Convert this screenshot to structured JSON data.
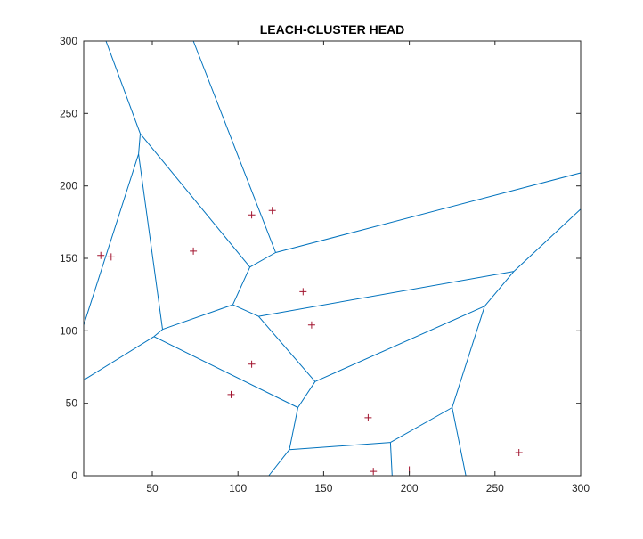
{
  "chart_data": {
    "type": "scatter",
    "title": "LEACH-CLUSTER HEAD",
    "xlabel": "",
    "ylabel": "",
    "xlim": [
      10,
      300
    ],
    "ylim": [
      0,
      300
    ],
    "xticks": [
      50,
      100,
      150,
      200,
      250,
      300
    ],
    "yticks": [
      0,
      50,
      100,
      150,
      200,
      250,
      300
    ],
    "grid": false,
    "legend": "none",
    "marker": "+",
    "marker_color": "#A2142F",
    "edge_color": "#0072BD",
    "points": [
      {
        "x": 20,
        "y": 152
      },
      {
        "x": 26,
        "y": 151
      },
      {
        "x": 74,
        "y": 155
      },
      {
        "x": 108,
        "y": 180
      },
      {
        "x": 120,
        "y": 183
      },
      {
        "x": 138,
        "y": 127
      },
      {
        "x": 143,
        "y": 104
      },
      {
        "x": 108,
        "y": 77
      },
      {
        "x": 96,
        "y": 56
      },
      {
        "x": 176,
        "y": 40
      },
      {
        "x": 179,
        "y": 3
      },
      {
        "x": 200,
        "y": 4
      },
      {
        "x": 264,
        "y": 16
      }
    ],
    "voronoi_edges": [
      [
        [
          23,
          300
        ],
        [
          43,
          236
        ]
      ],
      [
        [
          43,
          236
        ],
        [
          42,
          222
        ]
      ],
      [
        [
          42,
          222
        ],
        [
          10,
          104
        ]
      ],
      [
        [
          42,
          222
        ],
        [
          56,
          101
        ]
      ],
      [
        [
          43,
          236
        ],
        [
          107,
          144
        ]
      ],
      [
        [
          74,
          300
        ],
        [
          122,
          154
        ]
      ],
      [
        [
          107,
          144
        ],
        [
          122,
          154
        ]
      ],
      [
        [
          107,
          144
        ],
        [
          97,
          118
        ]
      ],
      [
        [
          97,
          118
        ],
        [
          56,
          101
        ]
      ],
      [
        [
          56,
          101
        ],
        [
          51,
          96
        ]
      ],
      [
        [
          51,
          96
        ],
        [
          10,
          66
        ]
      ],
      [
        [
          51,
          96
        ],
        [
          135,
          47
        ]
      ],
      [
        [
          97,
          118
        ],
        [
          112,
          110
        ]
      ],
      [
        [
          112,
          110
        ],
        [
          145,
          65
        ]
      ],
      [
        [
          145,
          65
        ],
        [
          135,
          47
        ]
      ],
      [
        [
          135,
          47
        ],
        [
          130,
          18
        ]
      ],
      [
        [
          130,
          18
        ],
        [
          118,
          0
        ]
      ],
      [
        [
          130,
          18
        ],
        [
          189,
          23
        ]
      ],
      [
        [
          189,
          23
        ],
        [
          190,
          0
        ]
      ],
      [
        [
          189,
          23
        ],
        [
          225,
          47
        ]
      ],
      [
        [
          225,
          47
        ],
        [
          233,
          0
        ]
      ],
      [
        [
          225,
          47
        ],
        [
          244,
          117
        ]
      ],
      [
        [
          244,
          117
        ],
        [
          145,
          65
        ]
      ],
      [
        [
          244,
          117
        ],
        [
          261,
          141
        ]
      ],
      [
        [
          261,
          141
        ],
        [
          112,
          110
        ]
      ],
      [
        [
          261,
          141
        ],
        [
          300,
          184
        ]
      ],
      [
        [
          122,
          154
        ],
        [
          300,
          209
        ]
      ]
    ]
  }
}
